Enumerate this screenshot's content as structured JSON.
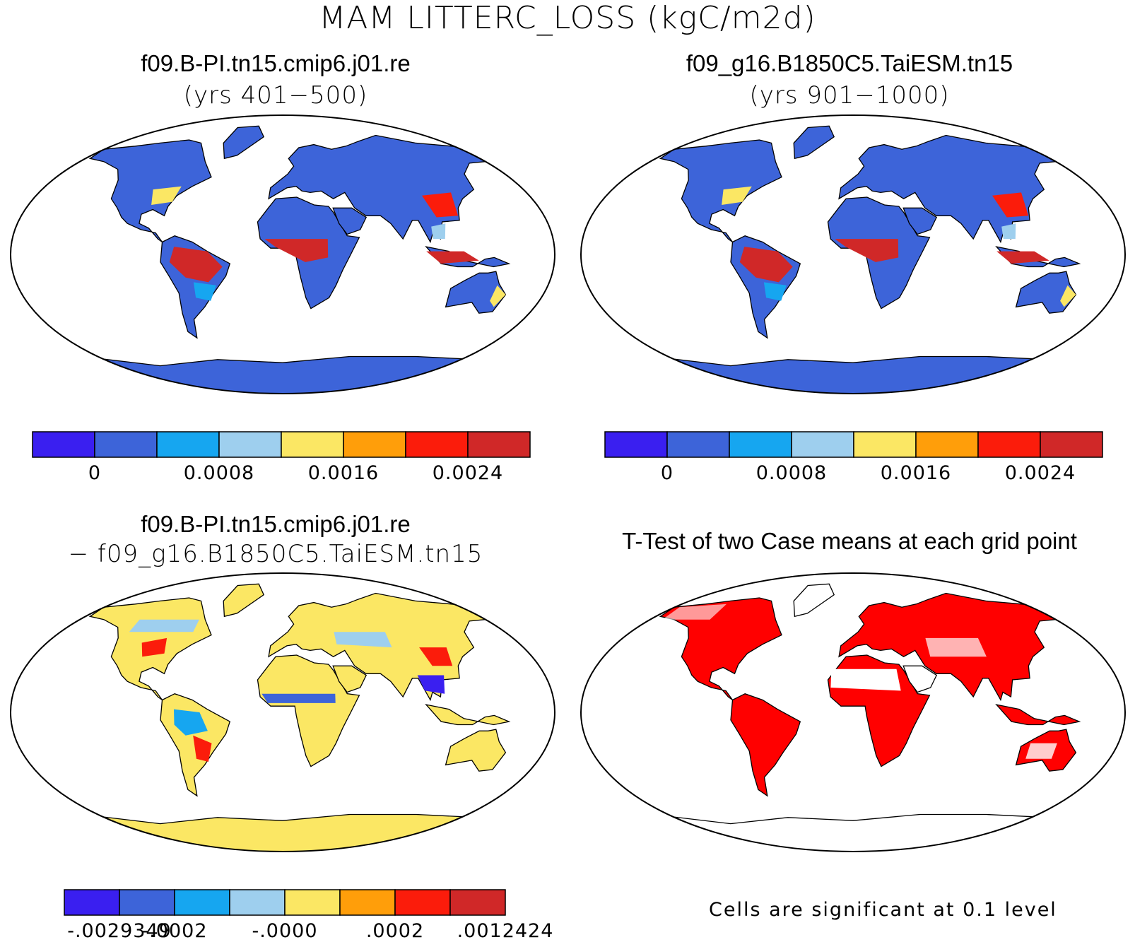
{
  "title": "MAM LITTERC_LOSS (kgC/m2d)",
  "panels": [
    {
      "id": "case1",
      "title": "f09.B-PI.tn15.cmip6.j01.re",
      "subtitle": "(yrs 401−500)"
    },
    {
      "id": "case2",
      "title": "f09_g16.B1850C5.TaiESM.tn15",
      "subtitle": "(yrs 901−1000)"
    },
    {
      "id": "difference",
      "title": "f09.B-PI.tn15.cmip6.j01.re",
      "subtitle": "− f09_g16.B1850C5.TaiESM.tn15"
    },
    {
      "id": "ttest",
      "title": "T-Test of two Case means at each grid point",
      "subtitle": ""
    }
  ],
  "colorbar_case": {
    "colors": [
      "#3a1ff0",
      "#3d64d9",
      "#16a6f0",
      "#9ecfee",
      "#fbe764",
      "#ff9e0a",
      "#fb1c0b",
      "#d02828"
    ],
    "labels": [
      "0",
      "0.0008",
      "0.0016",
      "0.0024"
    ],
    "label_boundaries": [
      1,
      3,
      5,
      7
    ]
  },
  "colorbar_diff": {
    "colors": [
      "#3a1ff0",
      "#3d64d9",
      "#16a6f0",
      "#9ecfee",
      "#fbe764",
      "#ff9e0a",
      "#fb1c0b",
      "#d02828"
    ],
    "labels": [
      "-.0029349",
      "-.0002",
      "-.0000",
      ".0002",
      ".0012424"
    ],
    "label_boundaries": [
      1,
      2,
      4,
      6,
      8
    ]
  },
  "ttest_color": "#ff0000",
  "significance_note": "Cells are significant at 0.1 level"
}
